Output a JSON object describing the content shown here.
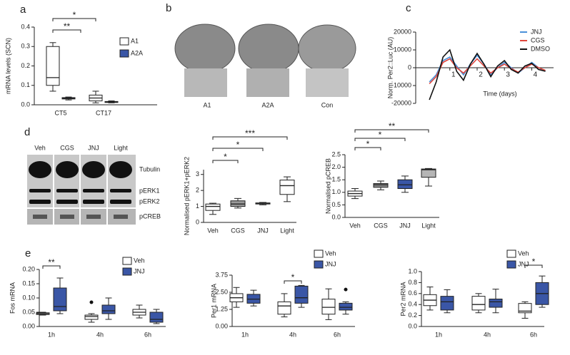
{
  "panel_b": {
    "panel": "b",
    "labels": [
      "A1",
      "A2A",
      "Con"
    ]
  },
  "blot": {
    "panel": "d",
    "lanes": [
      "Veh",
      "CGS",
      "JNJ",
      "Light"
    ],
    "bands": [
      "Tubulin",
      "pERK1",
      "pERK2",
      "pCREB"
    ]
  },
  "chart_data": [
    {
      "type": "box",
      "panel": "a",
      "ylabel": "mRNA levels (SCN)",
      "categories": [
        "CT5",
        "CT17"
      ],
      "series": [
        {
          "name": "A1",
          "color": "#ffffff",
          "min": [
            0.07,
            0.01
          ],
          "q1": [
            0.1,
            0.02
          ],
          "median": [
            0.14,
            0.035
          ],
          "q3": [
            0.3,
            0.05
          ],
          "max": [
            0.32,
            0.07
          ]
        },
        {
          "name": "A2A",
          "color": "#3a56a6",
          "min": [
            0.025,
            0.01
          ],
          "q1": [
            0.03,
            0.012
          ],
          "median": [
            0.033,
            0.015
          ],
          "q3": [
            0.037,
            0.017
          ],
          "max": [
            0.04,
            0.02
          ]
        }
      ],
      "ylim": [
        0,
        0.4
      ],
      "yticks": [
        {
          "value": 0,
          "label": "0.0"
        },
        0.1,
        0.2,
        0.3,
        0.4
      ],
      "annotations": [
        "**",
        "*"
      ]
    },
    {
      "type": "line",
      "panel": "c",
      "ylabel": "Norm. Per2::Luc (AU)",
      "xlabel": "Time (days)",
      "x": [
        0.25,
        0.5,
        0.75,
        1.0,
        1.25,
        1.5,
        1.75,
        2.0,
        2.25,
        2.5,
        2.75,
        3.0,
        3.25,
        3.5,
        3.75,
        4.0,
        4.25,
        4.5
      ],
      "series": [
        {
          "name": "JNJ",
          "color": "#4a90d9",
          "values": [
            -8000,
            -4000,
            4000,
            6000,
            1000,
            -4000,
            2000,
            7000,
            2000,
            -4000,
            0,
            3000,
            0,
            -3000,
            0,
            3000,
            0,
            -2000
          ]
        },
        {
          "name": "CGS",
          "color": "#e0463c",
          "values": [
            -9000,
            -5000,
            3000,
            5000,
            0,
            -3000,
            1000,
            5000,
            1000,
            -3000,
            0,
            2000,
            -500,
            -2500,
            0,
            2000,
            0,
            -1500
          ]
        },
        {
          "name": "DMSO",
          "color": "#111111",
          "values": [
            -18000,
            -8000,
            6000,
            10000,
            -2000,
            -7000,
            2000,
            8000,
            2000,
            -5000,
            1000,
            4000,
            -1000,
            -3000,
            1000,
            2500,
            -1000,
            -2000
          ]
        }
      ],
      "xlim": [
        -0.25,
        4.8
      ],
      "xticks": [
        1,
        2,
        3,
        4
      ],
      "ylim": [
        -20000,
        20000
      ],
      "yticks": [
        -20000,
        -10000,
        0,
        10000,
        20000
      ]
    },
    {
      "type": "box",
      "ylabel": "Normalised pERK1+pERK2",
      "categories": [
        "Veh",
        "CGS",
        "JNJ",
        "Light"
      ],
      "series": [
        {
          "colors": [
            "#ffffff",
            "#9a9a9a",
            "#7c8290",
            "#ffffff"
          ],
          "min": [
            0.5,
            0.9,
            1.1,
            1.3
          ],
          "q1": [
            0.75,
            1.0,
            1.15,
            1.75
          ],
          "median": [
            1.0,
            1.15,
            1.2,
            2.3
          ],
          "q3": [
            1.15,
            1.35,
            1.22,
            2.65
          ],
          "max": [
            1.2,
            1.5,
            1.25,
            2.85
          ]
        }
      ],
      "ylim": [
        0,
        3.3
      ],
      "yticks": [
        0,
        1,
        2,
        3
      ],
      "annotations": [
        "*",
        "*",
        "***"
      ]
    },
    {
      "type": "box",
      "ylabel": "Normalised pCREB",
      "categories": [
        "Veh",
        "CGS",
        "JNJ",
        "Light"
      ],
      "series": [
        {
          "colors": [
            "#ffffff",
            "#8c8c8c",
            "#3a56a6",
            "#b5b5b5"
          ],
          "min": [
            0.75,
            1.1,
            1.0,
            1.25
          ],
          "q1": [
            0.85,
            1.2,
            1.15,
            1.6
          ],
          "median": [
            0.95,
            1.3,
            1.3,
            1.9
          ],
          "q3": [
            1.05,
            1.35,
            1.5,
            1.93
          ],
          "max": [
            1.15,
            1.45,
            1.65,
            1.95
          ]
        }
      ],
      "ylim": [
        0,
        2.5
      ],
      "yticks": [
        {
          "value": 0,
          "label": "0.0"
        },
        0.5,
        {
          "value": 1,
          "label": "1.0"
        },
        1.5,
        {
          "value": 2,
          "label": "2.0"
        },
        2.5
      ],
      "annotations": [
        "*",
        "*",
        "**"
      ]
    },
    {
      "type": "box",
      "panel": "e",
      "ylabel": "Fos mRNA",
      "categories": [
        "1h",
        "4h",
        "6h"
      ],
      "series": [
        {
          "name": "Veh",
          "color": "#ffffff",
          "min": [
            0.04,
            0.015,
            0.03
          ],
          "q1": [
            0.042,
            0.025,
            0.04
          ],
          "median": [
            0.045,
            0.035,
            0.05
          ],
          "q3": [
            0.048,
            0.04,
            0.06
          ],
          "max": [
            0.05,
            0.045,
            0.075
          ],
          "outliers": [
            null,
            0.085,
            null
          ]
        },
        {
          "name": "JNJ",
          "color": "#3a56a6",
          "min": [
            0.045,
            0.025,
            0.01
          ],
          "q1": [
            0.055,
            0.045,
            0.015
          ],
          "median": [
            0.07,
            0.055,
            0.025
          ],
          "q3": [
            0.135,
            0.075,
            0.05
          ],
          "max": [
            0.17,
            0.1,
            0.06
          ],
          "outliers": [
            null,
            null,
            null
          ]
        }
      ],
      "ylim": [
        0,
        0.2
      ],
      "yticks": [
        {
          "value": 0,
          "label": "0.00"
        },
        {
          "value": 0.05,
          "label": "0.05"
        },
        {
          "value": 0.1,
          "label": "0.10"
        },
        {
          "value": 0.15,
          "label": "0.15"
        },
        {
          "value": 0.2,
          "label": "0.20"
        }
      ],
      "annotations": [
        "**"
      ]
    },
    {
      "type": "box",
      "ylabel": "Per1 mRNA",
      "categories": [
        "1h",
        "4h",
        "6h"
      ],
      "series": [
        {
          "name": "Veh",
          "color": "#ffffff",
          "min": [
            1.4,
            0.7,
            0.5
          ],
          "q1": [
            1.8,
            0.9,
            0.9
          ],
          "median": [
            2.1,
            1.5,
            1.4
          ],
          "q3": [
            2.4,
            1.8,
            2.0
          ],
          "max": [
            2.85,
            2.4,
            2.75
          ],
          "outliers": [
            null,
            null,
            null
          ]
        },
        {
          "name": "JNJ",
          "color": "#3a56a6",
          "min": [
            1.5,
            1.4,
            0.9
          ],
          "q1": [
            1.7,
            1.7,
            1.2
          ],
          "median": [
            2.0,
            2.1,
            1.4
          ],
          "q3": [
            2.35,
            2.95,
            1.7
          ],
          "max": [
            2.65,
            3.0,
            1.8
          ],
          "outliers": [
            null,
            null,
            2.7
          ]
        }
      ],
      "ylim": [
        0,
        3.75
      ],
      "yticks": [
        {
          "value": 0,
          "label": "0.00"
        },
        1.25,
        {
          "value": 2.5,
          "label": "2.50"
        },
        3.75
      ],
      "annotations": [
        "*"
      ]
    },
    {
      "type": "box",
      "ylabel": "Per2 mRNA",
      "categories": [
        "1h",
        "4h",
        "6h"
      ],
      "series": [
        {
          "name": "Veh",
          "color": "#ffffff",
          "min": [
            0.3,
            0.25,
            0.15
          ],
          "q1": [
            0.38,
            0.3,
            0.25
          ],
          "median": [
            0.48,
            0.4,
            0.28
          ],
          "q3": [
            0.58,
            0.55,
            0.42
          ],
          "max": [
            0.72,
            0.6,
            0.45
          ],
          "outliers": [
            null,
            null,
            null
          ]
        },
        {
          "name": "JNJ",
          "color": "#3a56a6",
          "min": [
            0.25,
            0.25,
            0.35
          ],
          "q1": [
            0.3,
            0.35,
            0.4
          ],
          "median": [
            0.45,
            0.45,
            0.6
          ],
          "q3": [
            0.55,
            0.5,
            0.8
          ],
          "max": [
            0.67,
            0.68,
            0.92
          ],
          "outliers": [
            null,
            null,
            null
          ]
        }
      ],
      "ylim": [
        0,
        1.0
      ],
      "yticks": [
        {
          "value": 0,
          "label": "0.0"
        },
        0.2,
        0.4,
        0.6,
        0.8,
        {
          "value": 1,
          "label": "1.0"
        }
      ],
      "annotations": [
        "*"
      ]
    }
  ]
}
